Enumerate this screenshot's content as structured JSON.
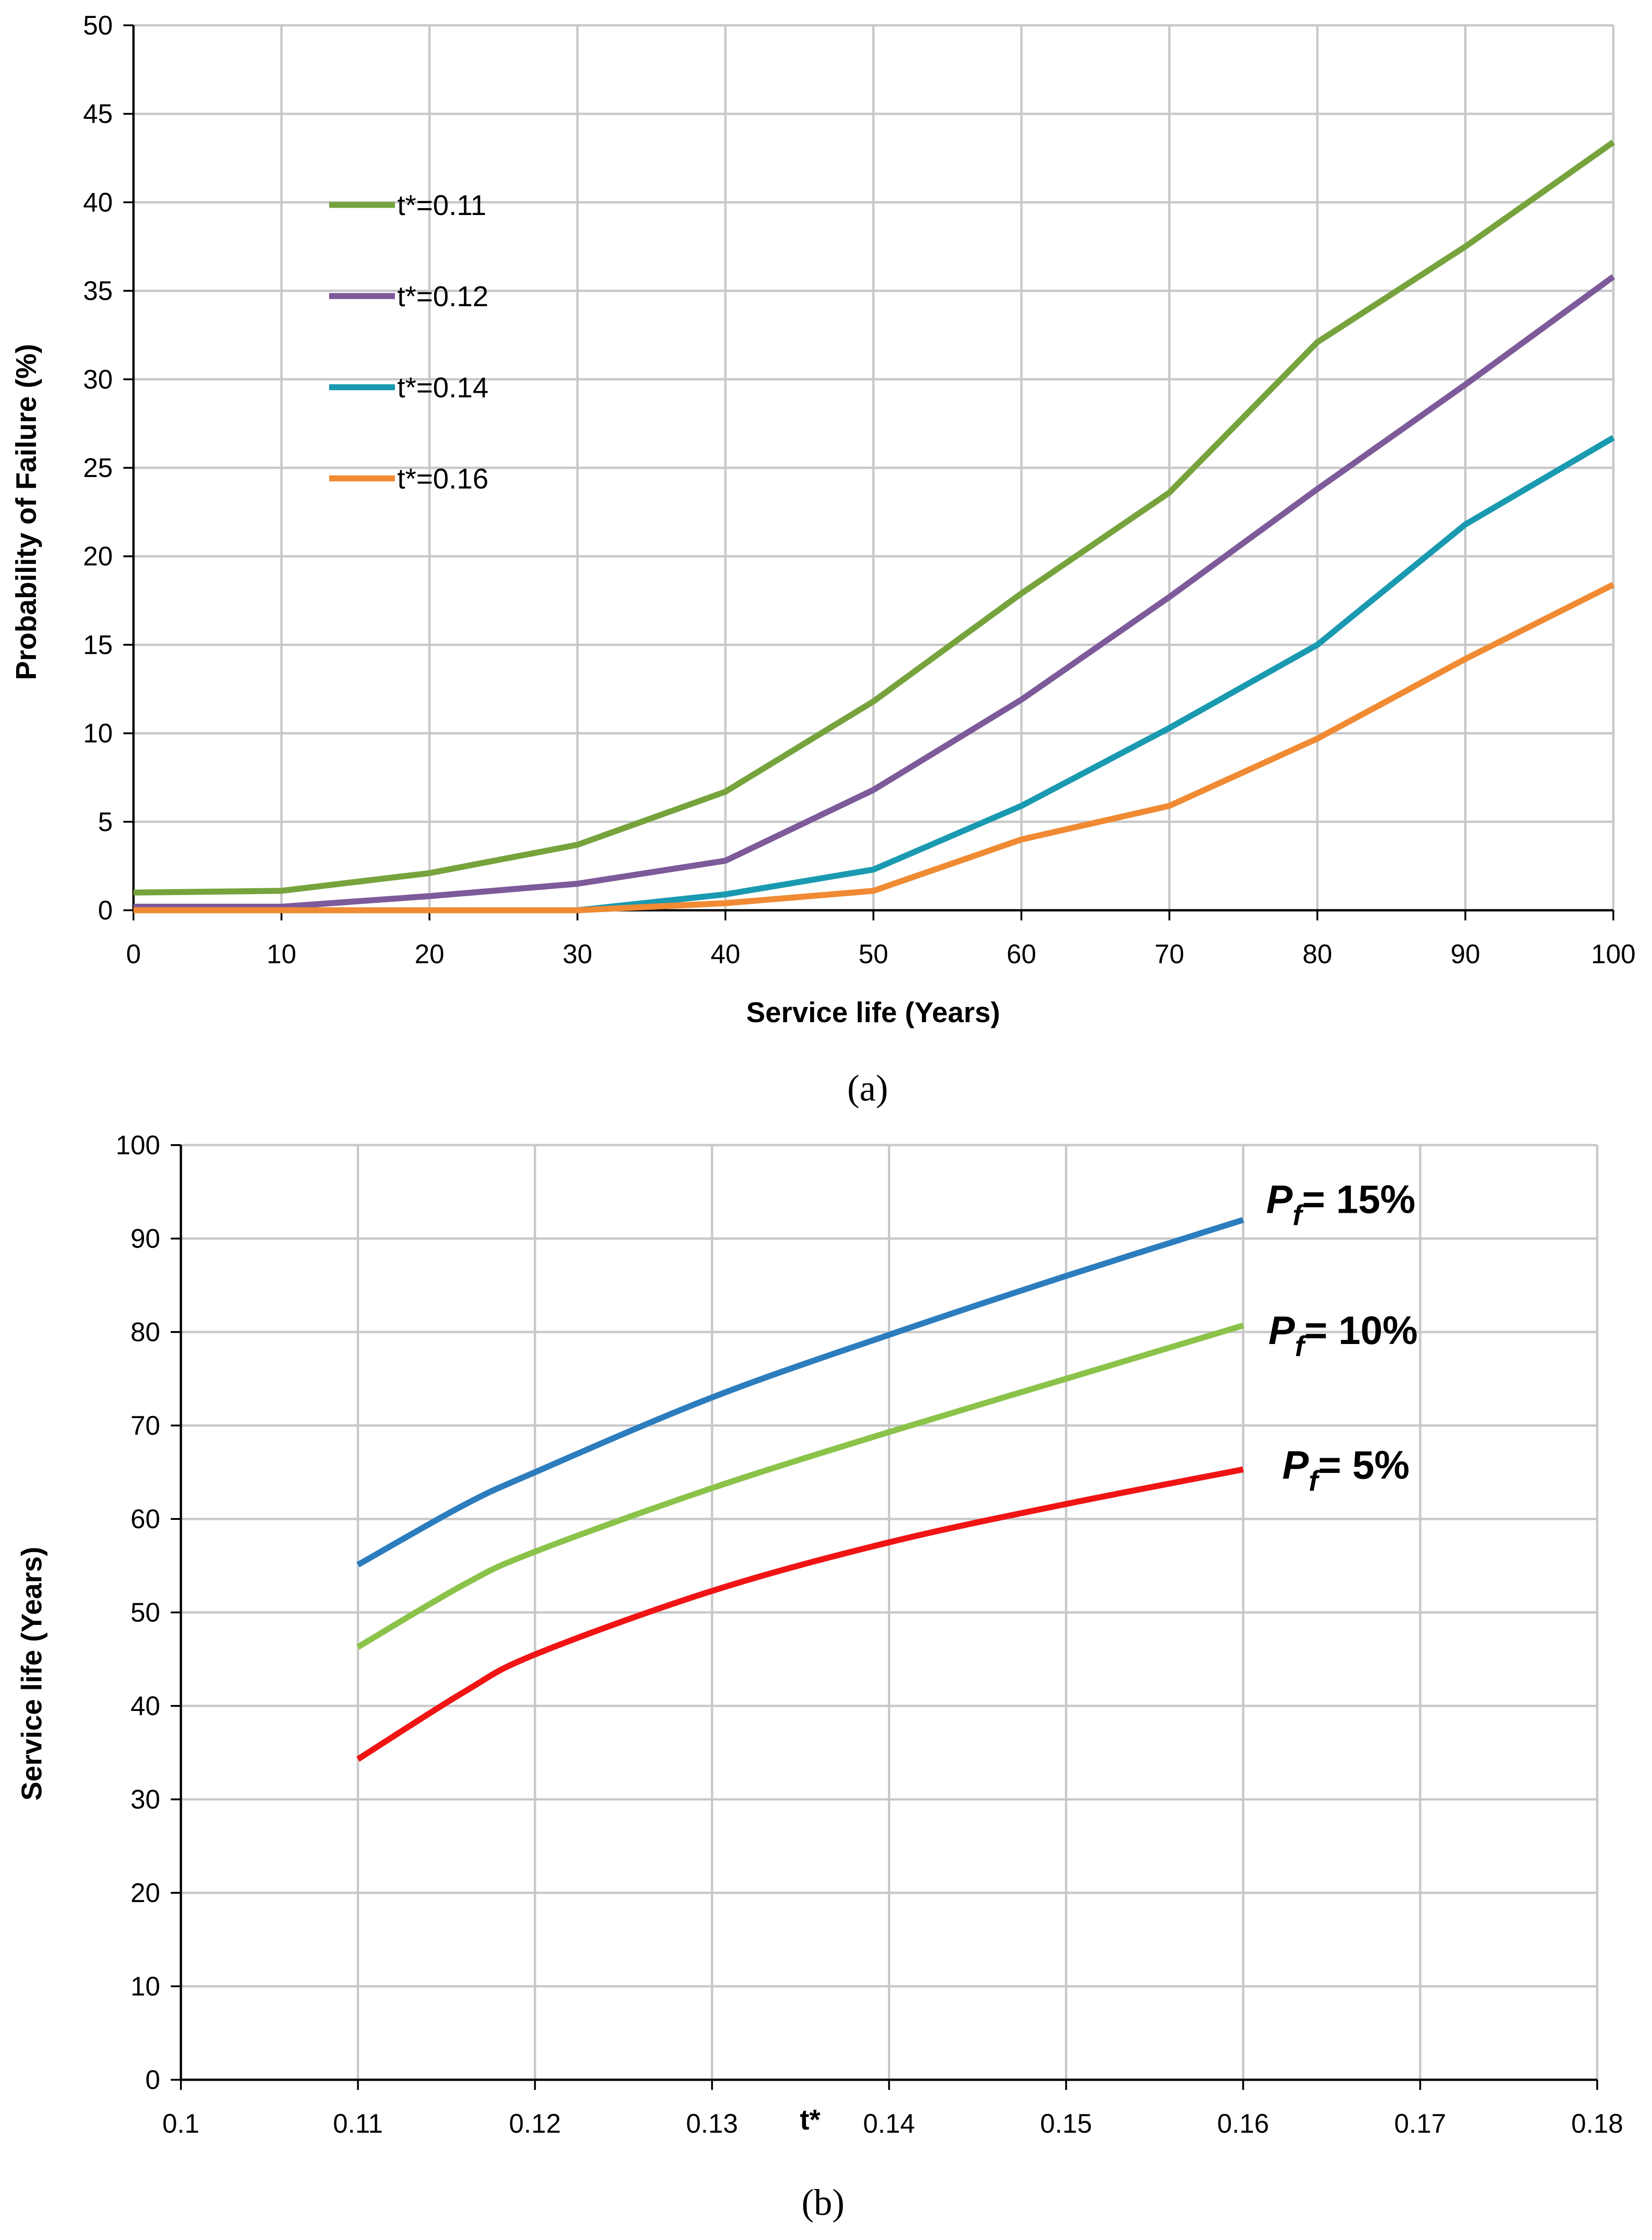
{
  "chart_data": [
    {
      "type": "line",
      "panel_label": "(a)",
      "xlabel": "Service life (Years)",
      "ylabel": "Probability of Failure (%)",
      "xlim": [
        0,
        100
      ],
      "ylim": [
        0,
        50
      ],
      "x_ticks": [
        "0",
        "10",
        "20",
        "30",
        "40",
        "50",
        "60",
        "70",
        "80",
        "90",
        "100"
      ],
      "y_ticks": [
        "0",
        "5",
        "10",
        "15",
        "20",
        "25",
        "30",
        "35",
        "40",
        "45",
        "50"
      ],
      "grid": true,
      "legend_position": "top-left",
      "x": [
        0,
        10,
        20,
        30,
        40,
        50,
        60,
        70,
        80,
        90,
        100
      ],
      "series": [
        {
          "name": "t*=0.11",
          "color": "#77A33D",
          "values": [
            1.0,
            1.1,
            2.1,
            3.7,
            6.7,
            11.8,
            17.9,
            23.6,
            32.1,
            37.5,
            43.4
          ]
        },
        {
          "name": "t*=0.12",
          "color": "#7D5A99",
          "values": [
            0.2,
            0.2,
            0.8,
            1.5,
            2.8,
            6.8,
            11.9,
            17.7,
            23.8,
            29.7,
            35.8
          ]
        },
        {
          "name": "t*=0.14",
          "color": "#1A9AB1",
          "values": [
            0.0,
            0.0,
            0.0,
            0.0,
            0.9,
            2.3,
            5.9,
            10.3,
            15.0,
            21.8,
            26.7
          ]
        },
        {
          "name": "t*=0.16",
          "color": "#F08A33",
          "values": [
            0.0,
            0.0,
            0.0,
            0.0,
            0.4,
            1.1,
            4.0,
            5.9,
            9.7,
            14.2,
            18.4
          ]
        }
      ]
    },
    {
      "type": "line",
      "panel_label": "(b)",
      "xlabel": "t*",
      "ylabel": "Service life (Years)",
      "xlim": [
        0.1,
        0.18
      ],
      "ylim": [
        0,
        100
      ],
      "x_ticks": [
        "0.1",
        "0.11",
        "0.12",
        "0.13",
        "0.14",
        "0.15",
        "0.16",
        "0.17",
        "0.18"
      ],
      "y_ticks": [
        "0",
        "10",
        "20",
        "30",
        "40",
        "50",
        "60",
        "70",
        "80",
        "90",
        "100"
      ],
      "grid": true,
      "legend_position": "right of line ends",
      "x": [
        0.11,
        0.116,
        0.12,
        0.13,
        0.14,
        0.15,
        0.16
      ],
      "series": [
        {
          "name": "Pf = 15%",
          "label_prefix": "P",
          "label_sub": "f",
          "label_suffix": "= 15%",
          "color": "#2C7DBE",
          "values": [
            55.1,
            61.5,
            65.0,
            73.0,
            79.7,
            86.0,
            92.0
          ]
        },
        {
          "name": "Pf = 10%",
          "label_prefix": "P",
          "label_sub": "f",
          "label_suffix": "= 10%",
          "color": "#8BC34A",
          "values": [
            46.3,
            53.0,
            56.5,
            63.3,
            69.3,
            75.0,
            80.7
          ]
        },
        {
          "name": "Pf = 5%",
          "label_prefix": "P",
          "label_sub": "f",
          "label_suffix": "= 5%",
          "color": "#F01414",
          "values": [
            34.3,
            41.5,
            45.5,
            52.3,
            57.5,
            61.6,
            65.3
          ]
        }
      ]
    }
  ]
}
